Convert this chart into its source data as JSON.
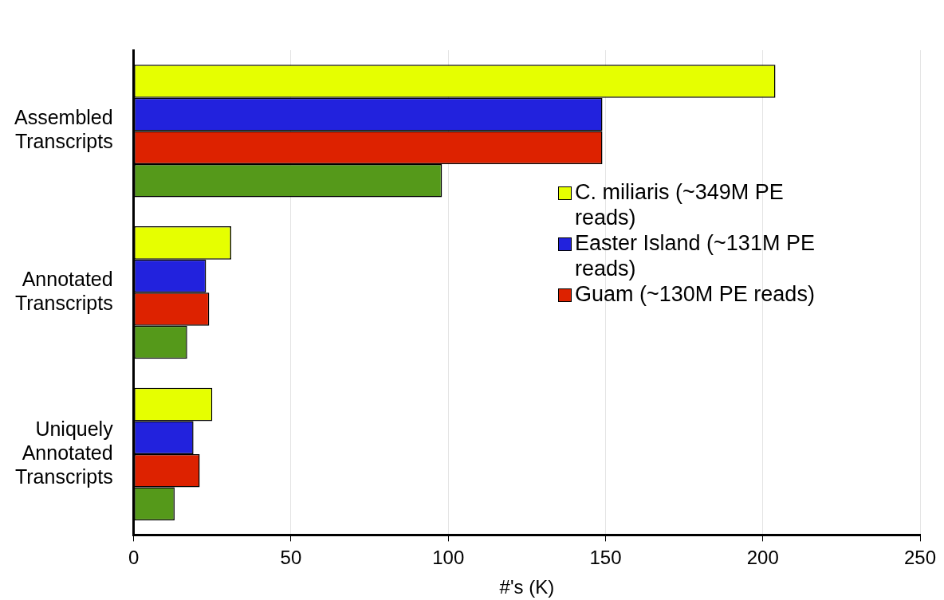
{
  "chart_data": {
    "type": "bar",
    "orientation": "horizontal",
    "xlabel": "#'s (K)",
    "categories": [
      "Assembled Transcripts",
      "Annotated Transcripts",
      "Uniquely Annotated Transcripts"
    ],
    "series": [
      {
        "name": "C. miliaris (~349M PE reads)",
        "color": "#e6ff00",
        "values": [
          204,
          31,
          25
        ]
      },
      {
        "name": "Easter Island (~131M PE reads)",
        "color": "#2222dd",
        "values": [
          149,
          23,
          19
        ]
      },
      {
        "name": "Guam (~130M PE reads)",
        "color": "#dd2200",
        "values": [
          149,
          24,
          21
        ]
      },
      {
        "color": "#55991a",
        "values": [
          98,
          17,
          13
        ]
      }
    ],
    "xlim": [
      0,
      250
    ],
    "xticks": [
      0,
      50,
      100,
      150,
      200,
      250
    ],
    "grid": "x",
    "legend": "right"
  }
}
